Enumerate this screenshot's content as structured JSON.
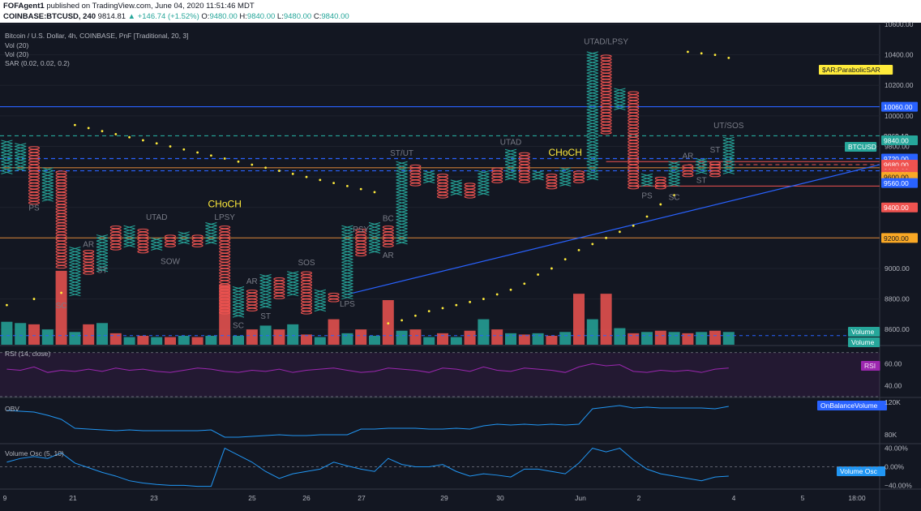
{
  "header": {
    "author": "FOFAgent1",
    "published": "published on TradingView.com, June 04, 2020 11:51:46 MDT",
    "symbol": "COINBASE:BTCUSD, 240",
    "last": "9814.81",
    "change": "▲ +146.74 (+1.52%)",
    "o_label": "O:",
    "o": "9480.00",
    "h_label": "H:",
    "h": "9840.00",
    "l_label": "L:",
    "l": "9480.00",
    "c_label": "C:",
    "c": "9840.00"
  },
  "study_labels": {
    "title": "Bitcoin / U.S. Dollar, 4h, COINBASE, PnF [Traditional, 20, 3]",
    "vol1": "Vol (20)",
    "vol2": "Vol (20)",
    "sar": "SAR (0.02, 0.02, 0.2)",
    "rsi": "RSI (14, close)",
    "obv": "OBV",
    "vosc": "Volume Osc (5, 10)"
  },
  "colors": {
    "up": "#26a69a",
    "down": "#ef5350",
    "background": "#131722",
    "sar": "#ffeb3b",
    "rsi": "#9c27b0",
    "obv": "#2196f3",
    "blue_line": "#2962ff",
    "orange_line": "#c67a36"
  },
  "chart_data": {
    "type": "pnf",
    "box_size": 20,
    "reversal": 3,
    "ylim": [
      8500,
      10600
    ],
    "price_ticks": [
      "10600.00",
      "10400.00",
      "10200.00",
      "10000.00",
      "9800.00",
      "9600.00",
      "9400.00",
      "9200.00",
      "9000.00",
      "8800.00",
      "8600.00"
    ],
    "x_tick_labels": [
      "9",
      "21",
      "23",
      "25",
      "26",
      "27",
      "29",
      "30",
      "Jun",
      "2",
      "4",
      "5",
      "18:00"
    ],
    "columns": [
      {
        "d": "up",
        "lo": 9620,
        "hi": 9840
      },
      {
        "d": "up",
        "lo": 9640,
        "hi": 9820
      },
      {
        "d": "down",
        "lo": 9420,
        "hi": 9800
      },
      {
        "d": "up",
        "lo": 9440,
        "hi": 9660
      },
      {
        "d": "down",
        "lo": 9000,
        "hi": 9640
      },
      {
        "d": "up",
        "lo": 8820,
        "hi": 9140
      },
      {
        "d": "down",
        "lo": 8960,
        "hi": 9120
      },
      {
        "d": "up",
        "lo": 8980,
        "hi": 9220
      },
      {
        "d": "down",
        "lo": 9120,
        "hi": 9280
      },
      {
        "d": "up",
        "lo": 9140,
        "hi": 9280
      },
      {
        "d": "down",
        "lo": 9100,
        "hi": 9260
      },
      {
        "d": "up",
        "lo": 9120,
        "hi": 9200
      },
      {
        "d": "down",
        "lo": 9140,
        "hi": 9220
      },
      {
        "d": "up",
        "lo": 9160,
        "hi": 9240
      },
      {
        "d": "down",
        "lo": 9140,
        "hi": 9220
      },
      {
        "d": "up",
        "lo": 9160,
        "hi": 9300
      },
      {
        "d": "down",
        "lo": 8700,
        "hi": 9280
      },
      {
        "d": "up",
        "lo": 8680,
        "hi": 8880
      },
      {
        "d": "down",
        "lo": 8720,
        "hi": 8860
      },
      {
        "d": "up",
        "lo": 8740,
        "hi": 8960
      },
      {
        "d": "down",
        "lo": 8800,
        "hi": 8940
      },
      {
        "d": "up",
        "lo": 8820,
        "hi": 8980
      },
      {
        "d": "down",
        "lo": 8700,
        "hi": 8980
      },
      {
        "d": "up",
        "lo": 8720,
        "hi": 8860
      },
      {
        "d": "down",
        "lo": 8780,
        "hi": 8840
      },
      {
        "d": "up",
        "lo": 8800,
        "hi": 9280
      },
      {
        "d": "down",
        "lo": 9080,
        "hi": 9260
      },
      {
        "d": "up",
        "lo": 9100,
        "hi": 9300
      },
      {
        "d": "down",
        "lo": 9140,
        "hi": 9280
      },
      {
        "d": "up",
        "lo": 9160,
        "hi": 9700
      },
      {
        "d": "down",
        "lo": 9540,
        "hi": 9680
      },
      {
        "d": "up",
        "lo": 9560,
        "hi": 9640
      },
      {
        "d": "down",
        "lo": 9460,
        "hi": 9620
      },
      {
        "d": "up",
        "lo": 9480,
        "hi": 9580
      },
      {
        "d": "down",
        "lo": 9460,
        "hi": 9560
      },
      {
        "d": "up",
        "lo": 9480,
        "hi": 9640
      },
      {
        "d": "down",
        "lo": 9560,
        "hi": 9660
      },
      {
        "d": "up",
        "lo": 9580,
        "hi": 9780
      },
      {
        "d": "down",
        "lo": 9560,
        "hi": 9760
      },
      {
        "d": "up",
        "lo": 9580,
        "hi": 9640
      },
      {
        "d": "down",
        "lo": 9520,
        "hi": 9620
      },
      {
        "d": "up",
        "lo": 9540,
        "hi": 9660
      },
      {
        "d": "down",
        "lo": 9560,
        "hi": 9640
      },
      {
        "d": "up",
        "lo": 9580,
        "hi": 10420
      },
      {
        "d": "down",
        "lo": 9880,
        "hi": 10400
      },
      {
        "d": "up",
        "lo": 10040,
        "hi": 10180
      },
      {
        "d": "down",
        "lo": 9520,
        "hi": 10160
      },
      {
        "d": "up",
        "lo": 9540,
        "hi": 9620
      },
      {
        "d": "down",
        "lo": 9520,
        "hi": 9600
      },
      {
        "d": "up",
        "lo": 9540,
        "hi": 9700
      },
      {
        "d": "down",
        "lo": 9600,
        "hi": 9680
      },
      {
        "d": "up",
        "lo": 9620,
        "hi": 9720
      },
      {
        "d": "down",
        "lo": 9600,
        "hi": 9700
      },
      {
        "d": "up",
        "lo": 9620,
        "hi": 9860
      }
    ],
    "sar_points": [
      [
        0,
        8760
      ],
      [
        2,
        8800
      ],
      [
        4,
        8840
      ],
      [
        5,
        9940
      ],
      [
        6,
        9920
      ],
      [
        7,
        9900
      ],
      [
        8,
        9880
      ],
      [
        9,
        9860
      ],
      [
        10,
        9840
      ],
      [
        11,
        9820
      ],
      [
        12,
        9800
      ],
      [
        13,
        9780
      ],
      [
        14,
        9760
      ],
      [
        15,
        9740
      ],
      [
        16,
        9720
      ],
      [
        17,
        9700
      ],
      [
        18,
        9680
      ],
      [
        19,
        9660
      ],
      [
        20,
        9640
      ],
      [
        21,
        9620
      ],
      [
        22,
        9600
      ],
      [
        23,
        9580
      ],
      [
        24,
        9560
      ],
      [
        25,
        9540
      ],
      [
        26,
        9520
      ],
      [
        27,
        9500
      ],
      [
        28,
        8640
      ],
      [
        29,
        8660
      ],
      [
        30,
        8690
      ],
      [
        31,
        8720
      ],
      [
        32,
        8740
      ],
      [
        33,
        8760
      ],
      [
        34,
        8780
      ],
      [
        35,
        8800
      ],
      [
        36,
        8830
      ],
      [
        37,
        8860
      ],
      [
        38,
        8900
      ],
      [
        39,
        8960
      ],
      [
        40,
        9000
      ],
      [
        41,
        9060
      ],
      [
        42,
        9120
      ],
      [
        43,
        9160
      ],
      [
        44,
        9200
      ],
      [
        45,
        9240
      ],
      [
        46,
        9280
      ],
      [
        47,
        9340
      ],
      [
        48,
        9420
      ],
      [
        49,
        9480
      ],
      [
        50,
        10420
      ],
      [
        51,
        10410
      ],
      [
        52,
        10400
      ],
      [
        53,
        10380
      ]
    ],
    "volume": [
      18,
      17,
      16,
      12,
      58,
      10,
      16,
      17,
      9,
      6,
      7,
      6,
      6,
      7,
      6,
      7,
      47,
      7,
      12,
      15,
      12,
      16,
      8,
      6,
      20,
      9,
      12,
      7,
      35,
      11,
      12,
      6,
      9,
      6,
      11,
      20,
      12,
      9,
      8,
      9,
      7,
      10,
      40,
      20,
      40,
      13,
      9,
      10,
      11,
      10,
      9,
      10,
      11,
      10
    ],
    "rsi": [
      55,
      54,
      57,
      52,
      54,
      53,
      55,
      53,
      56,
      54,
      55,
      53,
      52,
      54,
      56,
      55,
      53,
      52,
      54,
      53,
      55,
      52,
      54,
      55,
      56,
      54,
      52,
      53,
      56,
      55,
      54,
      52,
      56,
      55,
      53,
      57,
      54,
      53,
      56,
      55,
      54,
      52,
      57,
      60,
      58,
      59,
      53,
      52,
      54,
      53,
      54,
      52,
      55,
      56
    ],
    "rsi_ticks": [
      "60.00",
      "40.00"
    ],
    "obv": [
      110,
      109,
      108,
      104,
      99,
      88,
      87,
      86,
      85,
      86,
      85,
      85,
      85,
      85,
      85,
      86,
      77,
      77,
      78,
      79,
      80,
      79,
      79,
      80,
      80,
      80,
      87,
      87,
      88,
      88,
      88,
      87,
      87,
      88,
      87,
      91,
      93,
      92,
      93,
      92,
      93,
      92,
      93,
      112,
      114,
      116,
      113,
      114,
      113,
      113,
      113,
      113,
      112,
      115
    ],
    "obv_ticks": [
      "120K",
      "80K"
    ],
    "vosc": [
      10,
      18,
      22,
      18,
      30,
      8,
      -2,
      -12,
      -20,
      -30,
      -35,
      -38,
      -40,
      -40,
      -42,
      -42,
      40,
      25,
      10,
      -10,
      -25,
      -15,
      -10,
      -5,
      10,
      2,
      -5,
      -10,
      18,
      5,
      0,
      0,
      5,
      -10,
      -20,
      -15,
      -18,
      -22,
      -5,
      -5,
      -10,
      -15,
      8,
      40,
      32,
      40,
      15,
      -5,
      -15,
      -20,
      -25,
      -30,
      -22,
      -20
    ],
    "vosc_ticks": [
      "40.00%",
      "0.00%",
      "−40.00%"
    ],
    "annotations": [
      {
        "text": "PS",
        "col": 2,
        "p": 9380,
        "c": "#787b86"
      },
      {
        "text": "SC",
        "col": 4,
        "p": 8740,
        "c": "#787b86"
      },
      {
        "text": "AR",
        "col": 6,
        "p": 9140,
        "c": "#787b86"
      },
      {
        "text": "ST",
        "col": 7,
        "p": 8970,
        "c": "#787b86"
      },
      {
        "text": "UTAD",
        "col": 11,
        "p": 9320,
        "c": "#787b86"
      },
      {
        "text": "SOW",
        "col": 12,
        "p": 9030,
        "c": "#787b86"
      },
      {
        "text": "LPSY",
        "col": 16,
        "p": 9320,
        "c": "#787b86"
      },
      {
        "text": "CHoCH",
        "col": 16,
        "p": 9400,
        "c": "#ffeb3b"
      },
      {
        "text": "SC",
        "col": 17,
        "p": 8610,
        "c": "#787b86"
      },
      {
        "text": "AR",
        "col": 18,
        "p": 8900,
        "c": "#787b86"
      },
      {
        "text": "ST",
        "col": 19,
        "p": 8670,
        "c": "#787b86"
      },
      {
        "text": "SOS",
        "col": 22,
        "p": 9020,
        "c": "#787b86"
      },
      {
        "text": "LPS",
        "col": 25,
        "p": 8750,
        "c": "#787b86"
      },
      {
        "text": "PSY",
        "col": 26,
        "p": 9240,
        "c": "#787b86"
      },
      {
        "text": "BC",
        "col": 28,
        "p": 9310,
        "c": "#787b86"
      },
      {
        "text": "AR",
        "col": 28,
        "p": 9070,
        "c": "#787b86"
      },
      {
        "text": "ST/UT",
        "col": 29,
        "p": 9740,
        "c": "#787b86"
      },
      {
        "text": "UTAD",
        "col": 37,
        "p": 9810,
        "c": "#787b86"
      },
      {
        "text": "CHoCH",
        "col": 41,
        "p": 9740,
        "c": "#ffeb3b"
      },
      {
        "text": "UTAD/LPSY",
        "col": 44,
        "p": 10470,
        "c": "#787b86"
      },
      {
        "text": "PS",
        "col": 47,
        "p": 9460,
        "c": "#787b86"
      },
      {
        "text": "SC",
        "col": 49,
        "p": 9450,
        "c": "#787b86"
      },
      {
        "text": "AR",
        "col": 50,
        "p": 9720,
        "c": "#787b86"
      },
      {
        "text": "ST",
        "col": 51,
        "p": 9560,
        "c": "#787b86"
      },
      {
        "text": "ST",
        "col": 52,
        "p": 9760,
        "c": "#787b86"
      },
      {
        "text": "UT/SOS",
        "col": 53,
        "p": 9920,
        "c": "#787b86"
      }
    ],
    "hlines": [
      {
        "p": 10060,
        "c": "#2962ff",
        "dash": false
      },
      {
        "p": 9869.19,
        "c": "#26a69a",
        "dash": true
      },
      {
        "p": 9720,
        "c": "#2962ff",
        "dash": true
      },
      {
        "p": 9660,
        "c": "#c67a36",
        "dash": false
      },
      {
        "p": 9640,
        "c": "#2962ff",
        "dash": true
      },
      {
        "p": 9200,
        "c": "#c67a36",
        "dash": false
      }
    ],
    "price_labels": [
      {
        "text": "10060.00",
        "p": 10060,
        "bg": "#2962ff",
        "fg": "#ffffff"
      },
      {
        "text": "9869.19",
        "p": 9869.19,
        "bg": "#131722",
        "fg": "#d1d4dc"
      },
      {
        "text": "9840.00",
        "p": 9840,
        "bg": "#26a69a",
        "fg": "#ffffff"
      },
      {
        "text": "9720.00",
        "p": 9720,
        "bg": "#2962ff",
        "fg": "#ffffff"
      },
      {
        "text": "9680.00",
        "p": 9680,
        "bg": "#ef5350",
        "fg": "#ffffff"
      },
      {
        "text": "9640.00",
        "p": 9640,
        "bg": "#ef5350",
        "fg": "#ffffff"
      },
      {
        "text": "9620.00",
        "p": 9620,
        "bg": "#ef5350",
        "fg": "#ffffff"
      },
      {
        "text": "9600.00",
        "p": 9600,
        "bg": "#f9a825",
        "fg": "#131722"
      },
      {
        "text": "9560.00",
        "p": 9560,
        "bg": "#2962ff",
        "fg": "#ffffff"
      },
      {
        "text": "9400.00",
        "p": 9400,
        "bg": "#ef5350",
        "fg": "#ffffff"
      },
      {
        "text": "9200.00",
        "p": 9200,
        "bg": "#f9a825",
        "fg": "#131722"
      }
    ],
    "tags": [
      {
        "text": "$AR:ParabolicSAR",
        "pane": "price",
        "bg": "#ffeb3b",
        "fg": "#131722"
      },
      {
        "text": "BTCUSD",
        "pane": "price",
        "bg": "#26a69a",
        "fg": "#ffffff"
      },
      {
        "text": "Volume",
        "pane": "price",
        "bg": "#26a69a",
        "fg": "#ffffff"
      },
      {
        "text": "Volume",
        "pane": "price",
        "bg": "#26a69a",
        "fg": "#ffffff"
      },
      {
        "text": "RSI",
        "pane": "rsi",
        "bg": "#9c27b0",
        "fg": "#ffffff"
      },
      {
        "text": "OnBalanceVolume",
        "pane": "obv",
        "bg": "#2962ff",
        "fg": "#ffffff"
      },
      {
        "text": "Volume Osc",
        "pane": "vosc",
        "bg": "#2196f3",
        "fg": "#ffffff"
      }
    ]
  }
}
